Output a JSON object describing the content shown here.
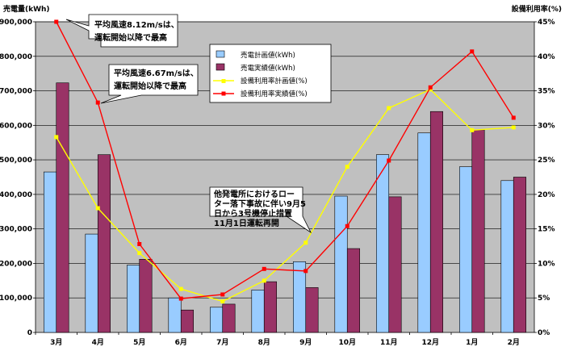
{
  "chart_data": {
    "type": "bar",
    "ylabel_left": "売電量(kWh)",
    "ylabel_right": "設備利用率(%)",
    "categories": [
      "3月",
      "4月",
      "5月",
      "6月",
      "7月",
      "8月",
      "9月",
      "10月",
      "11月",
      "12月",
      "1月",
      "2月"
    ],
    "ylim_left": [
      0,
      900000
    ],
    "yticks_left": [
      "0",
      "100,000",
      "200,000",
      "300,000",
      "400,000",
      "500,000",
      "600,000",
      "700,000",
      "800,000",
      "900,000"
    ],
    "ylim_right": [
      0,
      45
    ],
    "yticks_right": [
      "0%",
      "5%",
      "10%",
      "15%",
      "20%",
      "25%",
      "30%",
      "35%",
      "40%",
      "45%"
    ],
    "grid": true,
    "legend_position": "top-center",
    "series": [
      {
        "name": "売電計画値(kWh)",
        "kind": "bar",
        "axis": "left",
        "color": "#99ccff",
        "values": [
          465000,
          285000,
          195000,
          100000,
          73000,
          123000,
          205000,
          395000,
          515000,
          578000,
          480000,
          440000
        ]
      },
      {
        "name": "売電実績値(kWh)",
        "kind": "bar",
        "axis": "left",
        "color": "#993366",
        "values": [
          723000,
          515000,
          212000,
          65000,
          82000,
          147000,
          130000,
          243000,
          393000,
          640000,
          587000,
          450000
        ]
      },
      {
        "name": "設備利用率計画値(%)",
        "kind": "line",
        "axis": "right",
        "color": "#ffff00",
        "values": [
          28.3,
          18.0,
          11.5,
          6.3,
          4.5,
          7.5,
          13.0,
          24.0,
          32.5,
          35.2,
          29.3,
          29.7
        ]
      },
      {
        "name": "設備利用率実績値(%)",
        "kind": "line",
        "axis": "right",
        "color": "#ff0000",
        "values": [
          45.0,
          33.3,
          12.8,
          4.9,
          5.5,
          9.2,
          8.9,
          15.4,
          24.9,
          35.5,
          40.7,
          31.1
        ]
      }
    ],
    "annotations": [
      {
        "lines": [
          "平均風速8.12m/sは、",
          "運転開始以降で最高"
        ]
      },
      {
        "lines": [
          "平均風速6.67m/sは、",
          "運転開始以降で最高"
        ]
      },
      {
        "lines": [
          "他発電所におけるロー",
          "ター落下事故に伴い9月5",
          "日から3号機停止措置",
          "11月1日運転再開"
        ]
      }
    ]
  }
}
